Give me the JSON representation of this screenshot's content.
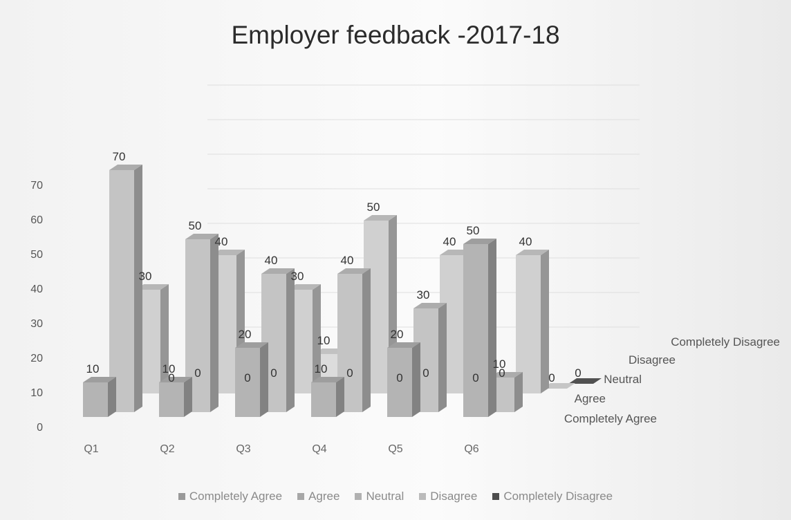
{
  "chart_data": {
    "type": "bar",
    "title": "Employer feedback -2017-18",
    "categories": [
      "Q1",
      "Q2",
      "Q3",
      "Q4",
      "Q5",
      "Q6"
    ],
    "series": [
      {
        "name": "Completely Agree",
        "color": "#b4b4b4",
        "values": [
          10,
          10,
          20,
          10,
          20,
          50
        ]
      },
      {
        "name": "Agree",
        "color": "#c4c4c4",
        "values": [
          70,
          50,
          40,
          40,
          30,
          10
        ]
      },
      {
        "name": "Neutral",
        "color": "#d0d0d0",
        "values": [
          30,
          40,
          30,
          50,
          40,
          40
        ]
      },
      {
        "name": "Disagree",
        "color": "#dcdcdc",
        "values": [
          0,
          0,
          10,
          0,
          0,
          0
        ]
      },
      {
        "name": "Completely Disagree",
        "color": "#5a5a5a",
        "values": [
          0,
          0,
          0,
          0,
          0,
          0
        ]
      }
    ],
    "y_ticks": [
      "0",
      "10",
      "20",
      "30",
      "40",
      "50",
      "60",
      "70"
    ],
    "ylim": [
      0,
      70
    ],
    "legend_position": "bottom",
    "view": "3d-column"
  }
}
